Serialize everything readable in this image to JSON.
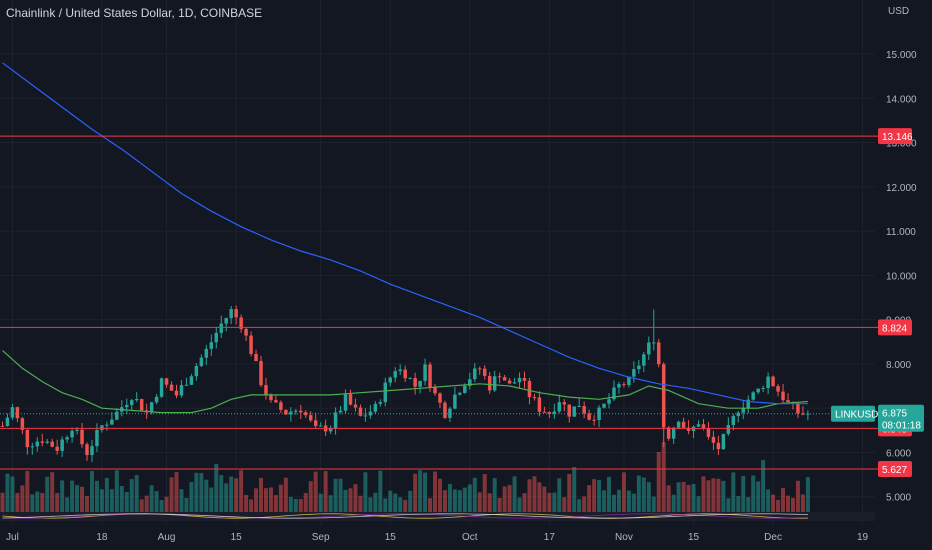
{
  "header": {
    "title": "Chainlink / United States Dollar, 1D, COINBASE",
    "currency": "USD"
  },
  "colors": {
    "background": "#131722",
    "grid": "#1e222d",
    "up": "#26a69a",
    "down": "#ef5350",
    "ma_fast": "#4caf50",
    "ma_slow": "#2962ff",
    "level": "#f23645"
  },
  "chart_data": {
    "type": "candlestick",
    "symbol_label": "LINKUSD",
    "ylim": [
      4.7,
      15.7
    ],
    "y_ticks": [
      5.0,
      6.0,
      7.0,
      8.0,
      9.0,
      10.0,
      11.0,
      12.0,
      13.0,
      14.0,
      15.0
    ],
    "y_tick_labels": [
      "5.000",
      "6.000",
      "7.000",
      "8.000",
      "9.000",
      "10.000",
      "11.000",
      "12.000",
      "13.000",
      "14.000",
      "15.000"
    ],
    "x_ticks": [
      {
        "day": 2,
        "label": "Jul"
      },
      {
        "day": 20,
        "label": "18"
      },
      {
        "day": 33,
        "label": "Aug"
      },
      {
        "day": 47,
        "label": "15"
      },
      {
        "day": 64,
        "label": "Sep"
      },
      {
        "day": 78,
        "label": "15"
      },
      {
        "day": 94,
        "label": "Oct"
      },
      {
        "day": 110,
        "label": "17"
      },
      {
        "day": 125,
        "label": "Nov"
      },
      {
        "day": 139,
        "label": "15"
      },
      {
        "day": 155,
        "label": "Dec"
      },
      {
        "day": 173,
        "label": "19"
      }
    ],
    "levels": [
      {
        "value": 13.146,
        "label": "13.146"
      },
      {
        "value": 8.824,
        "label": "8.824"
      },
      {
        "value": 6.545,
        "label": "6.545"
      },
      {
        "value": 5.627,
        "label": "5.627"
      }
    ],
    "last_price": {
      "value": 6.875,
      "label": "6.875",
      "countdown": "08:01:18"
    },
    "close_path": [
      [
        0,
        6.6
      ],
      [
        2,
        7.0
      ],
      [
        5,
        6.2
      ],
      [
        8,
        6.3
      ],
      [
        11,
        6.1
      ],
      [
        14,
        6.6
      ],
      [
        17,
        6.0
      ],
      [
        20,
        6.6
      ],
      [
        23,
        6.9
      ],
      [
        26,
        7.3
      ],
      [
        29,
        6.9
      ],
      [
        32,
        7.6
      ],
      [
        35,
        7.3
      ],
      [
        38,
        7.8
      ],
      [
        41,
        8.3
      ],
      [
        44,
        8.9
      ],
      [
        46,
        9.2
      ],
      [
        48,
        8.9
      ],
      [
        50,
        8.3
      ],
      [
        52,
        7.6
      ],
      [
        54,
        7.1
      ],
      [
        57,
        6.9
      ],
      [
        60,
        7.0
      ],
      [
        63,
        6.5
      ],
      [
        66,
        6.6
      ],
      [
        69,
        7.2
      ],
      [
        72,
        6.8
      ],
      [
        75,
        7.0
      ],
      [
        77,
        7.5
      ],
      [
        79,
        7.9
      ],
      [
        81,
        7.8
      ],
      [
        83,
        7.5
      ],
      [
        85,
        7.9
      ],
      [
        87,
        7.3
      ],
      [
        89,
        6.9
      ],
      [
        91,
        7.3
      ],
      [
        93,
        7.6
      ],
      [
        96,
        7.9
      ],
      [
        98,
        7.5
      ],
      [
        100,
        7.8
      ],
      [
        102,
        7.5
      ],
      [
        104,
        7.7
      ],
      [
        106,
        7.3
      ],
      [
        108,
        7.0
      ],
      [
        110,
        6.9
      ],
      [
        112,
        7.2
      ],
      [
        114,
        6.9
      ],
      [
        116,
        7.1
      ],
      [
        118,
        6.8
      ],
      [
        120,
        6.9
      ],
      [
        122,
        7.2
      ],
      [
        124,
        7.5
      ],
      [
        126,
        7.6
      ],
      [
        128,
        8.0
      ],
      [
        130,
        8.4
      ],
      [
        131,
        8.6
      ],
      [
        132,
        8.0
      ],
      [
        133,
        6.6
      ],
      [
        134,
        6.4
      ],
      [
        136,
        6.8
      ],
      [
        138,
        6.4
      ],
      [
        140,
        6.7
      ],
      [
        142,
        6.3
      ],
      [
        144,
        6.1
      ],
      [
        146,
        6.5
      ],
      [
        148,
        7.0
      ],
      [
        150,
        7.2
      ],
      [
        152,
        7.4
      ],
      [
        154,
        7.7
      ],
      [
        156,
        7.4
      ],
      [
        158,
        7.1
      ],
      [
        160,
        6.9
      ],
      [
        162,
        6.875
      ]
    ],
    "ma_fast": [
      [
        0,
        8.3
      ],
      [
        4,
        7.9
      ],
      [
        8,
        7.6
      ],
      [
        12,
        7.35
      ],
      [
        16,
        7.2
      ],
      [
        20,
        7.0
      ],
      [
        26,
        6.95
      ],
      [
        32,
        6.9
      ],
      [
        38,
        6.9
      ],
      [
        42,
        7.0
      ],
      [
        46,
        7.2
      ],
      [
        50,
        7.3
      ],
      [
        56,
        7.3
      ],
      [
        60,
        7.3
      ],
      [
        66,
        7.3
      ],
      [
        72,
        7.35
      ],
      [
        78,
        7.4
      ],
      [
        84,
        7.45
      ],
      [
        90,
        7.5
      ],
      [
        96,
        7.55
      ],
      [
        102,
        7.5
      ],
      [
        108,
        7.35
      ],
      [
        114,
        7.25
      ],
      [
        120,
        7.2
      ],
      [
        126,
        7.3
      ],
      [
        130,
        7.5
      ],
      [
        134,
        7.4
      ],
      [
        140,
        7.1
      ],
      [
        146,
        7.0
      ],
      [
        152,
        7.0
      ],
      [
        156,
        7.1
      ],
      [
        162,
        7.15
      ]
    ],
    "ma_slow": [
      [
        0,
        14.8
      ],
      [
        6,
        14.3
      ],
      [
        12,
        13.8
      ],
      [
        18,
        13.3
      ],
      [
        24,
        12.85
      ],
      [
        30,
        12.35
      ],
      [
        36,
        11.85
      ],
      [
        42,
        11.45
      ],
      [
        48,
        11.1
      ],
      [
        54,
        10.8
      ],
      [
        60,
        10.55
      ],
      [
        66,
        10.35
      ],
      [
        72,
        10.1
      ],
      [
        78,
        9.8
      ],
      [
        84,
        9.55
      ],
      [
        90,
        9.3
      ],
      [
        96,
        9.05
      ],
      [
        102,
        8.75
      ],
      [
        108,
        8.45
      ],
      [
        114,
        8.15
      ],
      [
        120,
        7.9
      ],
      [
        126,
        7.7
      ],
      [
        132,
        7.55
      ],
      [
        138,
        7.45
      ],
      [
        144,
        7.3
      ],
      [
        150,
        7.15
      ],
      [
        156,
        7.1
      ],
      [
        162,
        7.1
      ]
    ]
  }
}
